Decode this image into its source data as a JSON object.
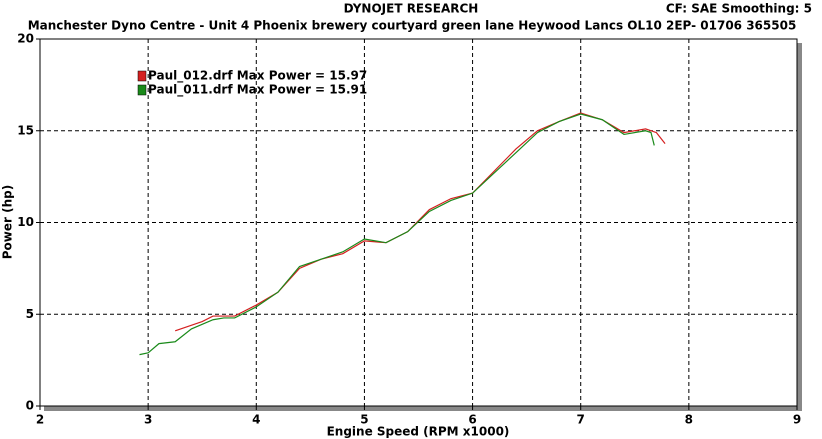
{
  "chart_data": {
    "type": "line",
    "title": "DYNOJET RESEARCH",
    "header_right": "CF: SAE  Smoothing: 5",
    "subtitle": "Manchester Dyno Centre - Unit 4 Phoenix brewery courtyard green lane Heywood Lancs OL10 2EP- 01706 365505",
    "x_label": "Engine Speed (RPM x1000)",
    "y_label": "Power (hp)",
    "xlim": [
      2,
      9
    ],
    "xticks": [
      2,
      3,
      4,
      5,
      6,
      7,
      8,
      9
    ],
    "ylim": [
      0,
      20
    ],
    "yticks": [
      0,
      5,
      10,
      15,
      20
    ],
    "grid": true,
    "series": [
      {
        "name": "Paul_012.drf Max Power = 15.97",
        "color": "#d42020",
        "x": [
          3.25,
          3.5,
          3.6,
          3.8,
          4.0,
          4.2,
          4.4,
          4.6,
          4.8,
          5.0,
          5.2,
          5.4,
          5.6,
          5.8,
          6.0,
          6.2,
          6.4,
          6.6,
          6.8,
          7.0,
          7.2,
          7.4,
          7.6,
          7.7,
          7.78
        ],
        "values": [
          4.1,
          4.6,
          4.9,
          4.9,
          5.5,
          6.2,
          7.5,
          8.0,
          8.3,
          9.0,
          8.9,
          9.5,
          10.7,
          11.3,
          11.6,
          12.8,
          14.0,
          15.0,
          15.5,
          15.97,
          15.6,
          14.9,
          15.1,
          14.9,
          14.3
        ]
      },
      {
        "name": "Paul_011.drf Max Power = 15.91",
        "color": "#1a8a1a",
        "x": [
          2.92,
          3.0,
          3.1,
          3.25,
          3.4,
          3.6,
          3.7,
          3.8,
          4.0,
          4.2,
          4.4,
          4.6,
          4.8,
          5.0,
          5.2,
          5.4,
          5.6,
          5.8,
          6.0,
          6.2,
          6.4,
          6.6,
          6.8,
          7.0,
          7.2,
          7.4,
          7.6,
          7.65,
          7.68
        ],
        "values": [
          2.8,
          2.9,
          3.4,
          3.5,
          4.2,
          4.7,
          4.8,
          4.8,
          5.4,
          6.2,
          7.6,
          8.0,
          8.4,
          9.1,
          8.9,
          9.5,
          10.6,
          11.2,
          11.6,
          12.7,
          13.8,
          14.9,
          15.5,
          15.91,
          15.6,
          14.8,
          15.0,
          14.9,
          14.2
        ]
      }
    ]
  }
}
